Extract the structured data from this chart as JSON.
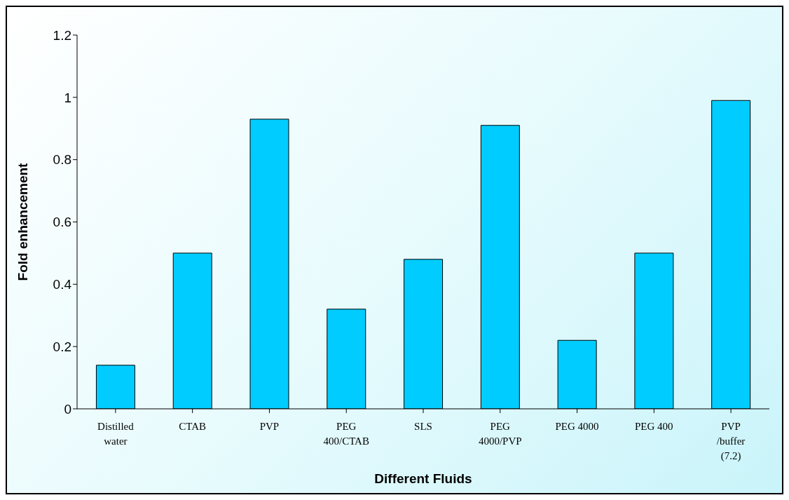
{
  "chart_data": {
    "type": "bar",
    "xlabel": "Different Fluids",
    "ylabel": "Fold enhancement",
    "categories": [
      "Distilled water",
      "CTAB",
      "PVP",
      "PEG 400/CTAB",
      "SLS",
      "PEG 4000/PVP",
      "PEG 4000",
      "PEG 400",
      "PVP /buffer (7.2)"
    ],
    "values": [
      0.14,
      0.5,
      0.93,
      0.32,
      0.48,
      0.91,
      0.22,
      0.5,
      0.99
    ],
    "color": "#00ccff",
    "ylim": [
      0,
      1.2
    ],
    "yticks": [
      0,
      0.2,
      0.4,
      0.6,
      0.8,
      1,
      1.2
    ],
    "grid": false,
    "legend": false
  }
}
